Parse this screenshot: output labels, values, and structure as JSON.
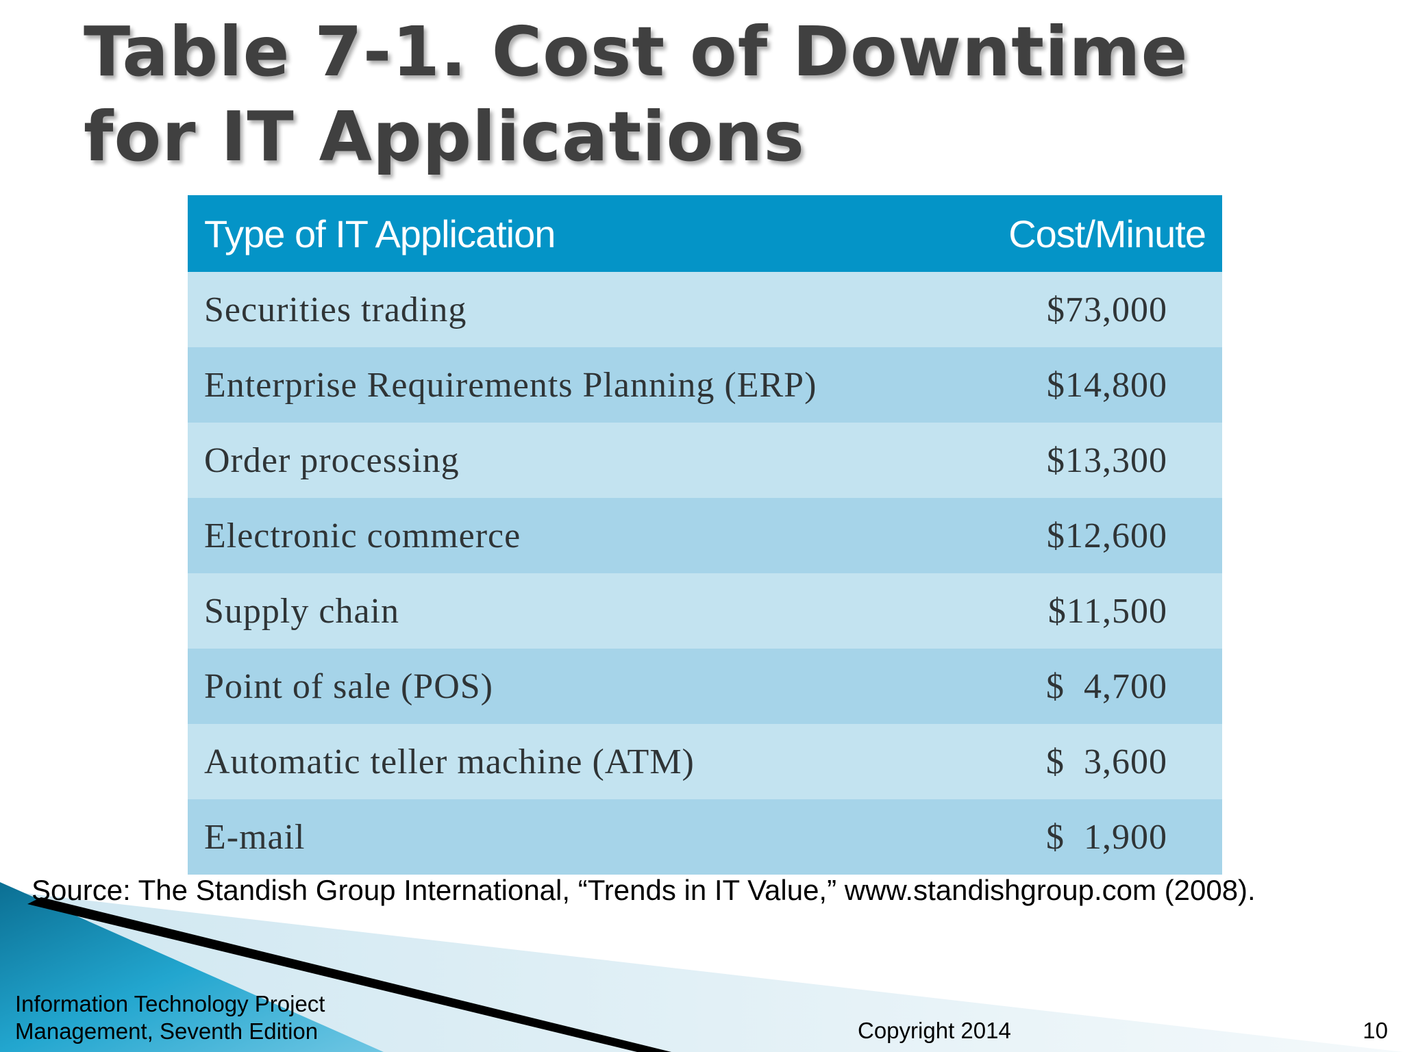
{
  "slide": {
    "title": "Table 7-1. Cost of Downtime for IT Applications",
    "source": "Source: The Standish Group International, “Trends in IT Value,” www.standishgroup.com (2008).",
    "footer": {
      "line1": "Information Technology Project",
      "line2": "Management, Seventh Edition",
      "copyright": "Copyright 2014",
      "page_number": "10"
    }
  },
  "table": {
    "headers": [
      "Type of IT Application",
      "Cost/Minute"
    ],
    "rows": [
      {
        "application": "Securities trading",
        "cost": "$73,000"
      },
      {
        "application": "Enterprise Requirements Planning (ERP)",
        "cost": "$14,800"
      },
      {
        "application": "Order processing",
        "cost": "$13,300"
      },
      {
        "application": "Electronic commerce",
        "cost": "$12,600"
      },
      {
        "application": "Supply chain",
        "cost": "$11,500"
      },
      {
        "application": "Point of sale (POS)",
        "cost": "$  4,700"
      },
      {
        "application": "Automatic teller machine (ATM)",
        "cost": "$  3,600"
      },
      {
        "application": "E-mail",
        "cost": "$  1,900"
      }
    ]
  },
  "colors": {
    "header_bg": "#0494c7",
    "row_light": "#c3e3f0",
    "row_dark": "#a6d4e9",
    "title_text": "#404040",
    "accent_teal": "#1a8fb8"
  }
}
